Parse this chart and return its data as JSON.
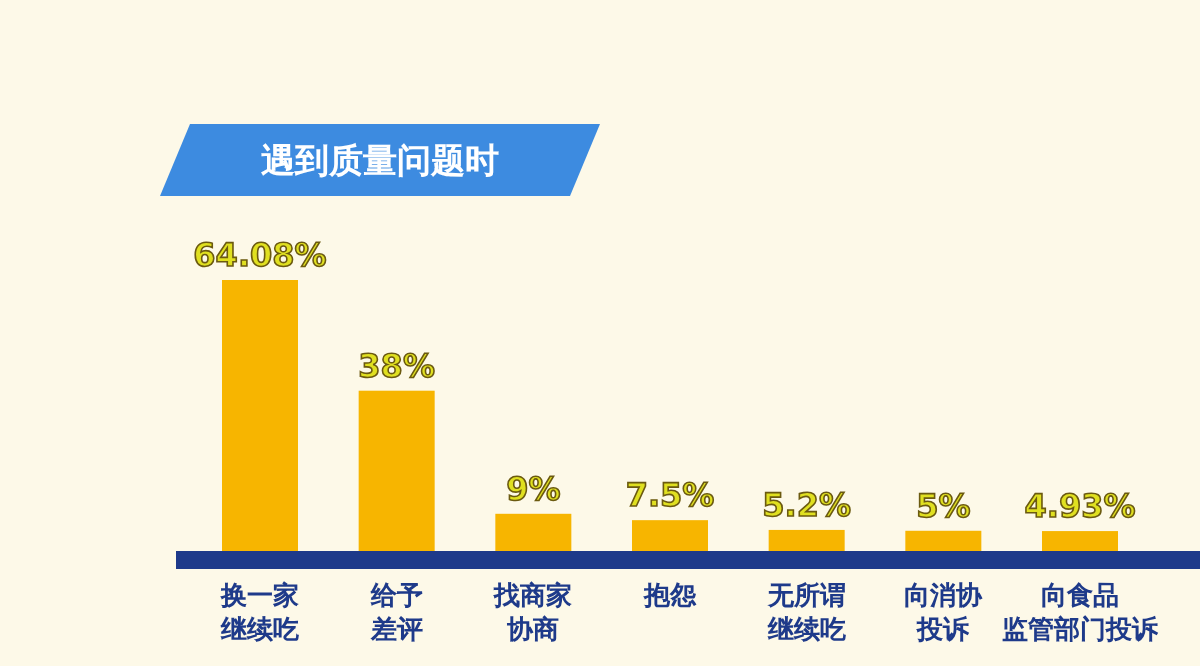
{
  "chart_data": {
    "type": "bar",
    "title": "遇到质量问题时",
    "categories": [
      "换一家继续吃",
      "给予差评",
      "找商家协商",
      "抱怨",
      "无所谓继续吃",
      "向消协投诉",
      "向食品监管部门投诉"
    ],
    "values": [
      64.08,
      38,
      9,
      7.5,
      5.2,
      5,
      4.93
    ],
    "value_labels": [
      "64.08%",
      "38%",
      "9%",
      "7.5%",
      "5.2%",
      "5%",
      "4.93%"
    ],
    "color": "#f7b500"
  }
}
